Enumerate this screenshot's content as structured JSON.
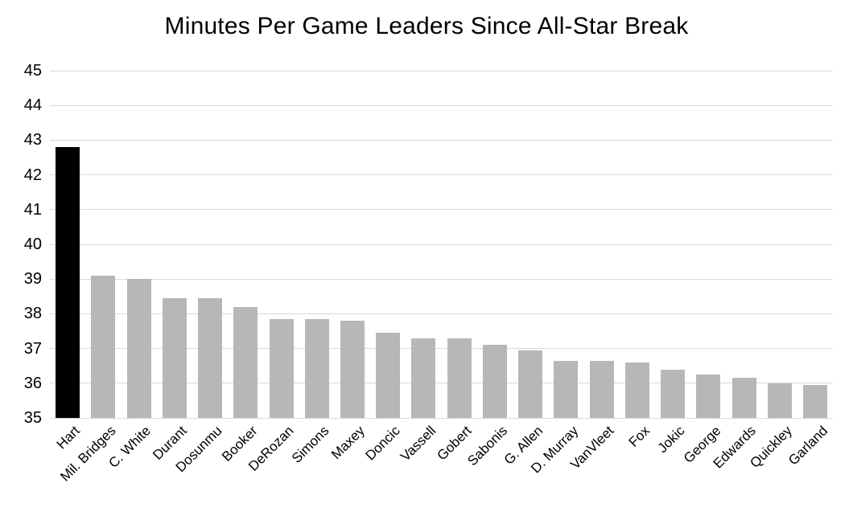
{
  "chart_data": {
    "type": "bar",
    "title": "Minutes Per Game Leaders Since All-Star Break",
    "categories": [
      "Hart",
      "Mil. Bridges",
      "C. White",
      "Durant",
      "Dosunmu",
      "Booker",
      "DeRozan",
      "Simons",
      "Maxey",
      "Doncic",
      "Vassell",
      "Gobert",
      "Sabonis",
      "G. Allen",
      "D. Murray",
      "VanVleet",
      "Fox",
      "Jokic",
      "George",
      "Edwards",
      "Quickley",
      "Garland"
    ],
    "values": [
      42.8,
      39.1,
      39.0,
      38.45,
      38.45,
      38.2,
      37.85,
      37.85,
      37.8,
      37.45,
      37.3,
      37.3,
      37.1,
      36.95,
      36.65,
      36.65,
      36.6,
      36.4,
      36.25,
      36.15,
      36.0,
      35.95
    ],
    "xlabel": "",
    "ylabel": "",
    "ylim": [
      35,
      45
    ],
    "yticks": [
      35,
      36,
      37,
      38,
      39,
      40,
      41,
      42,
      43,
      44,
      45
    ],
    "grid": true,
    "legend_position": "none",
    "colors": {
      "bar_default": "#b7b7b7",
      "bar_highlight": "#000000",
      "highlight_index": 0,
      "gridline": "#d9d9d9",
      "text": "#000000",
      "background": "#ffffff"
    }
  }
}
